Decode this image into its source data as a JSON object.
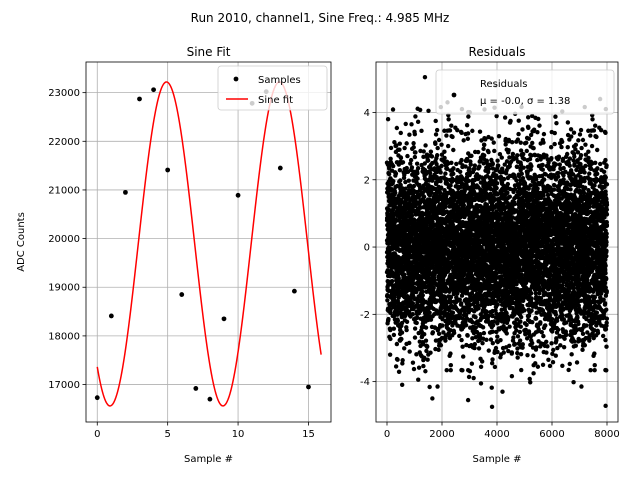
{
  "figure": {
    "suptitle": "Run 2010, channel1, Sine Freq.: 4.985 MHz"
  },
  "chart_data": [
    {
      "type": "scatter+line",
      "title": "Sine Fit",
      "xlabel": "Sample #",
      "ylabel": "ADC Counts",
      "xlim": [
        -0.8,
        16.6
      ],
      "ylim": [
        16230,
        23630
      ],
      "xticks": [
        0,
        5,
        10,
        15
      ],
      "yticks": [
        17000,
        18000,
        19000,
        20000,
        21000,
        22000,
        23000
      ],
      "grid": true,
      "legend_position": "top-right",
      "series": [
        {
          "name": "Samples",
          "kind": "scatter",
          "color": "#000000",
          "x": [
            0,
            1,
            2,
            3,
            4,
            5,
            6,
            7,
            8,
            9,
            10,
            11,
            12,
            13,
            14,
            15
          ],
          "y": [
            16730,
            18410,
            20950,
            22870,
            23060,
            21410,
            18850,
            16920,
            16700,
            18350,
            20890,
            22780,
            23020,
            21450,
            18920,
            16950
          ]
        },
        {
          "name": "Sine fit",
          "kind": "line",
          "color": "#ff0000",
          "model": {
            "offset": 19890,
            "amplitude": 3330,
            "period_samples": 8.02,
            "phase_rad": -2.28,
            "x_start": 0,
            "x_end": 15.9
          }
        }
      ]
    },
    {
      "type": "scatter",
      "title": "Residuals",
      "xlabel": "Sample #",
      "xlim": [
        -400,
        8400
      ],
      "ylim": [
        -5.2,
        5.5
      ],
      "xticks": [
        0,
        2000,
        4000,
        6000,
        8000
      ],
      "yticks": [
        -4,
        -2,
        0,
        2,
        4
      ],
      "grid": true,
      "legend_position": "top-right",
      "series": [
        {
          "name": "Residuals",
          "legend_label": "Residuals",
          "legend_stats": "μ = -0.0, σ = 1.38",
          "kind": "scatter",
          "color": "#000000",
          "n_points": 8000,
          "mean": 0.0,
          "std": 1.38,
          "outliers": [
            [
              40,
              3.8
            ],
            [
              1380,
              5.05
            ],
            [
              2200,
              4.3
            ],
            [
              3950,
              4.8
            ],
            [
              7750,
              4.4
            ],
            [
              3820,
              -4.75
            ],
            [
              1650,
              -4.5
            ],
            [
              2950,
              -4.55
            ],
            [
              7950,
              -4.72
            ],
            [
              4200,
              -4.3
            ]
          ]
        }
      ]
    }
  ]
}
